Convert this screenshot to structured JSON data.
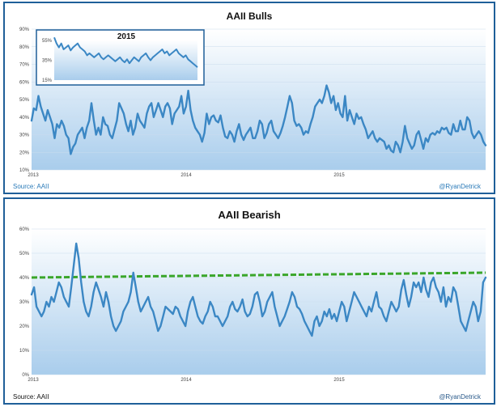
{
  "chart_data": [
    {
      "type": "line",
      "title": "AAII Bulls",
      "y_ticks": [
        "10%",
        "20%",
        "30%",
        "40%",
        "50%",
        "60%",
        "70%",
        "80%",
        "90%"
      ],
      "ylim": [
        10,
        90
      ],
      "x_ticks": [
        "2013",
        "2014",
        "2015"
      ],
      "source": "Source:  AAII",
      "credit": "@RyanDetrick",
      "line_color": "#3b87c4",
      "series": [
        {
          "values": [
            38,
            45,
            44,
            52,
            46,
            42,
            38,
            44,
            40,
            36,
            28,
            36,
            34,
            38,
            35,
            30,
            28,
            19,
            23,
            25,
            30,
            32,
            34,
            28,
            34,
            38,
            48,
            38,
            30,
            34,
            30,
            40,
            36,
            35,
            30,
            28,
            33,
            38,
            48,
            45,
            42,
            36,
            32,
            38,
            30,
            34,
            42,
            38,
            36,
            34,
            42,
            46,
            48,
            40,
            44,
            48,
            44,
            40,
            46,
            48,
            45,
            36,
            42,
            44,
            46,
            52,
            42,
            46,
            55,
            44,
            38,
            34,
            32,
            30,
            26,
            31,
            42,
            36,
            40,
            41,
            38,
            37,
            41,
            34,
            29,
            28,
            32,
            30,
            26,
            32,
            36,
            30,
            27,
            30,
            32,
            34,
            28,
            28,
            32,
            38,
            36,
            28,
            31,
            36,
            38,
            32,
            30,
            28,
            31,
            35,
            40,
            46,
            52,
            48,
            38,
            35,
            36,
            34,
            30,
            32,
            31,
            36,
            40,
            46,
            48,
            50,
            48,
            52,
            58,
            54,
            48,
            52,
            44,
            48,
            42,
            40,
            52,
            38,
            44,
            40,
            36,
            42,
            39,
            40,
            36,
            33,
            28,
            30,
            32,
            28,
            26,
            28,
            27,
            26,
            22,
            24,
            21,
            20,
            26,
            24,
            20,
            26,
            35,
            28,
            25,
            22,
            24,
            30,
            32,
            27,
            22,
            28,
            26,
            30,
            31,
            30,
            32,
            31,
            34,
            33,
            34,
            31,
            30,
            36,
            32,
            32,
            38,
            33,
            33,
            40,
            38,
            31,
            28,
            30,
            32,
            30,
            26,
            24
          ]
        }
      ],
      "inset": {
        "title": "2015",
        "y_ticks": [
          "55%",
          "35%",
          "15%"
        ],
        "ylim": [
          15,
          55
        ],
        "series": [
          {
            "values": [
              58,
              52,
              48,
              52,
              46,
              48,
              50,
              45,
              48,
              50,
              52,
              48,
              46,
              44,
              40,
              42,
              40,
              38,
              40,
              42,
              38,
              36,
              38,
              40,
              38,
              36,
              34,
              36,
              38,
              35,
              33,
              36,
              32,
              35,
              38,
              36,
              34,
              38,
              40,
              42,
              38,
              35,
              38,
              40,
              42,
              44,
              46,
              42,
              44,
              40,
              42,
              44,
              46,
              42,
              40,
              38,
              40,
              36,
              34,
              32,
              30,
              28
            ]
          }
        ]
      }
    },
    {
      "type": "line",
      "title": "AAII Bearish",
      "y_ticks": [
        "0%",
        "10%",
        "20%",
        "30%",
        "40%",
        "50%",
        "60%"
      ],
      "ylim": [
        0,
        60
      ],
      "x_ticks": [
        "2013",
        "2014",
        "2015"
      ],
      "source": "Source:  AAII",
      "credit": "@RyanDetrick",
      "line_color": "#3b87c4",
      "trend_color": "#3aa62a",
      "trend_line": {
        "start": 40,
        "end": 42
      },
      "series": [
        {
          "values": [
            33,
            36,
            28,
            26,
            24,
            26,
            30,
            28,
            32,
            30,
            34,
            38,
            36,
            32,
            30,
            28,
            36,
            45,
            54,
            48,
            38,
            30,
            26,
            24,
            28,
            34,
            38,
            35,
            32,
            28,
            34,
            30,
            24,
            20,
            18,
            20,
            22,
            26,
            28,
            30,
            34,
            42,
            36,
            30,
            26,
            28,
            30,
            32,
            28,
            26,
            22,
            18,
            20,
            24,
            28,
            27,
            26,
            25,
            28,
            27,
            24,
            22,
            20,
            26,
            30,
            32,
            28,
            24,
            22,
            21,
            24,
            26,
            30,
            28,
            24,
            24,
            22,
            20,
            22,
            24,
            28,
            30,
            27,
            26,
            28,
            31,
            26,
            24,
            25,
            28,
            33,
            34,
            30,
            24,
            26,
            30,
            32,
            34,
            28,
            24,
            20,
            22,
            24,
            27,
            30,
            34,
            32,
            28,
            27,
            25,
            22,
            20,
            18,
            16,
            22,
            24,
            20,
            22,
            26,
            24,
            27,
            23,
            25,
            22,
            26,
            30,
            28,
            22,
            26,
            30,
            34,
            32,
            30,
            28,
            26,
            24,
            28,
            26,
            30,
            34,
            28,
            27,
            24,
            22,
            26,
            30,
            28,
            26,
            28,
            35,
            39,
            33,
            28,
            32,
            38,
            36,
            38,
            34,
            40,
            35,
            32,
            38,
            40,
            36,
            34,
            30,
            36,
            28,
            32,
            30,
            36,
            34,
            28,
            22,
            20,
            18,
            22,
            26,
            30,
            28,
            22,
            26,
            38,
            40
          ]
        }
      ]
    }
  ]
}
